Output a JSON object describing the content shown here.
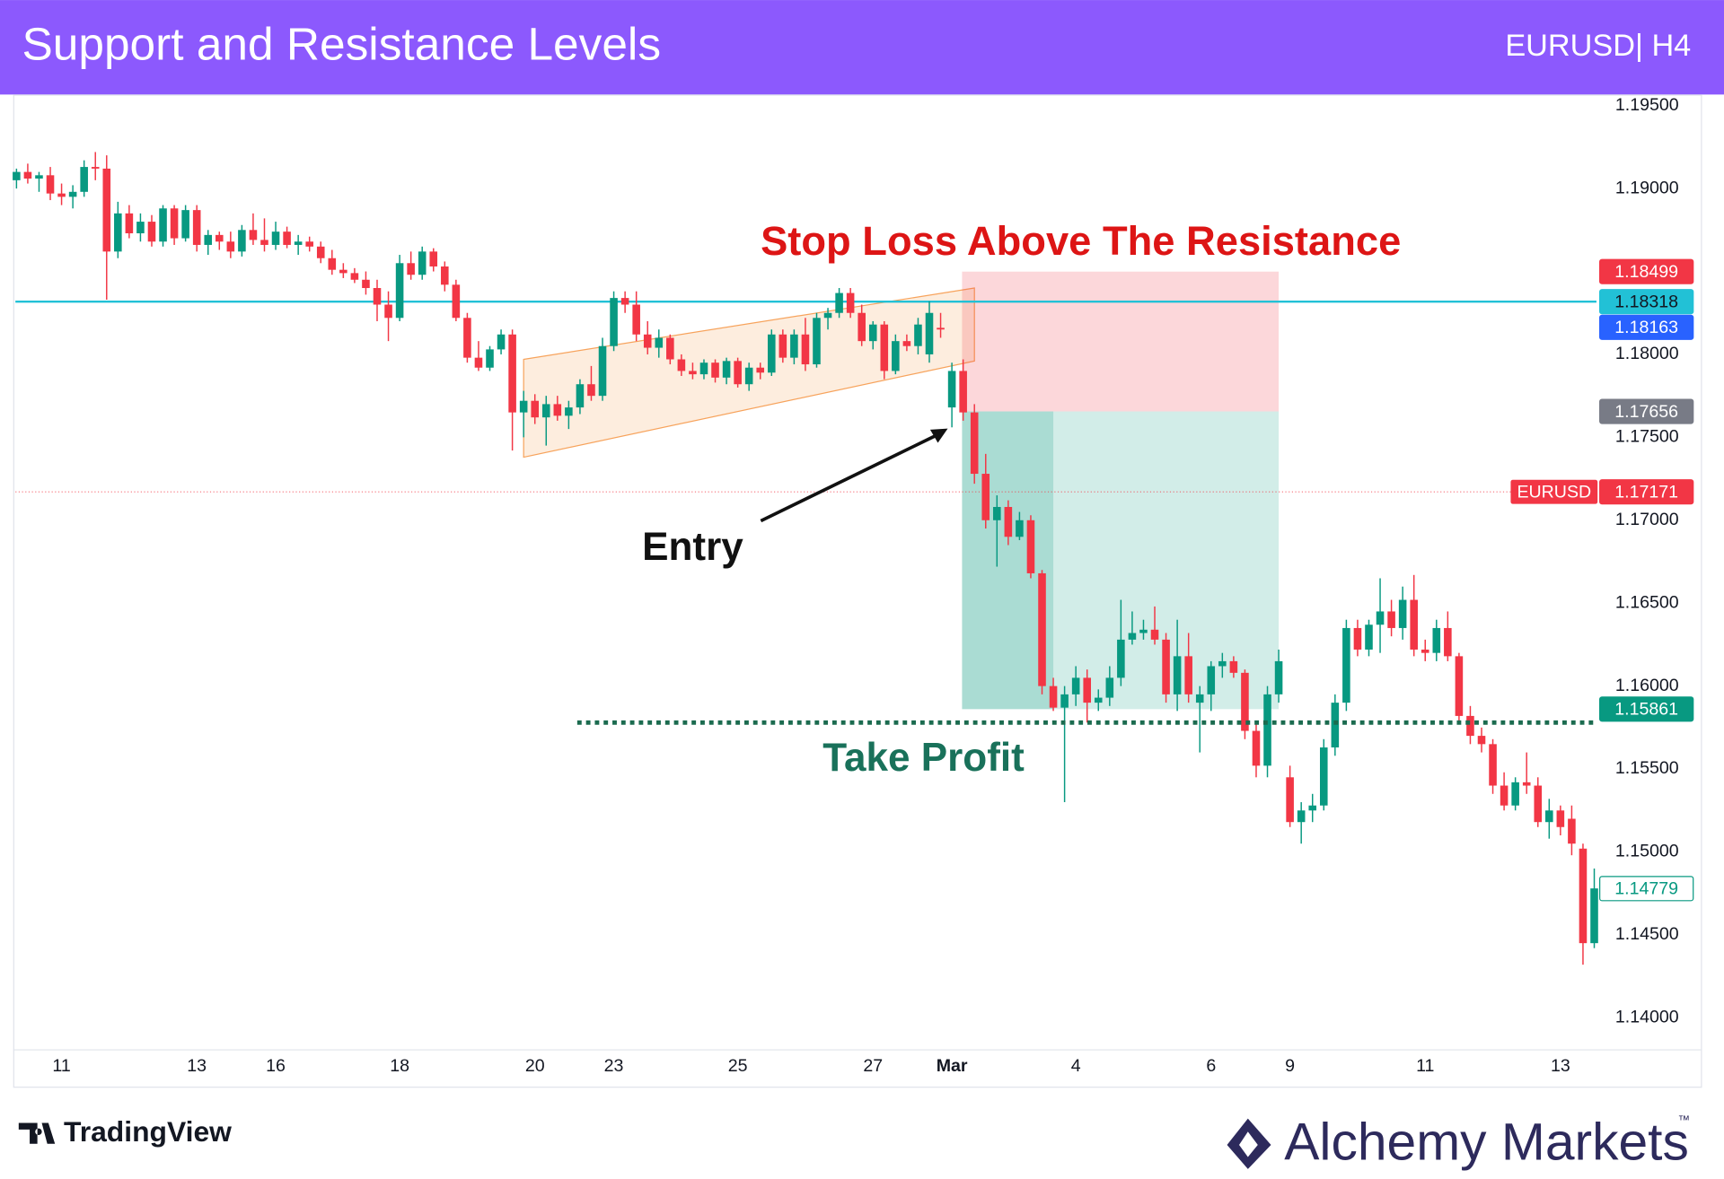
{
  "header": {
    "title": "Support and Resistance Levels",
    "symbol": "EURUSD| H4"
  },
  "chart_data": {
    "type": "candlestick",
    "categories": [
      null,
      null,
      null,
      null,
      "11",
      null,
      null,
      null,
      null,
      null,
      null,
      null,
      null,
      null,
      null,
      null,
      "13",
      null,
      null,
      null,
      null,
      null,
      null,
      "16",
      null,
      null,
      null,
      null,
      null,
      null,
      null,
      null,
      null,
      null,
      "18",
      null,
      null,
      null,
      null,
      null,
      null,
      null,
      null,
      null,
      null,
      null,
      "20",
      null,
      null,
      null,
      null,
      null,
      null,
      "23",
      null,
      null,
      null,
      null,
      null,
      null,
      null,
      null,
      null,
      null,
      "25",
      null,
      null,
      null,
      null,
      null,
      null,
      null,
      null,
      null,
      null,
      null,
      "27",
      null,
      null,
      null,
      null,
      null,
      null,
      "Mar",
      null,
      null,
      null,
      null,
      null,
      null,
      null,
      null,
      null,
      null,
      "4",
      null,
      null,
      null,
      null,
      null,
      null,
      null,
      null,
      null,
      null,
      null,
      "6",
      null,
      null,
      null,
      null,
      null,
      null,
      "9",
      null,
      null,
      null,
      null,
      null,
      null,
      null,
      null,
      null,
      null,
      null,
      "11",
      null,
      null,
      null,
      null,
      null,
      null,
      null,
      null,
      null,
      null,
      null,
      "13",
      null,
      null,
      null
    ],
    "ohlc": [
      [
        1.1905,
        1.1912,
        1.19,
        1.191
      ],
      [
        1.191,
        1.1915,
        1.1903,
        1.1906
      ],
      [
        1.1906,
        1.191,
        1.1898,
        1.1908
      ],
      [
        1.1908,
        1.1913,
        1.1893,
        1.1897
      ],
      [
        1.1897,
        1.1903,
        1.189,
        1.1895
      ],
      [
        1.1895,
        1.1902,
        1.1888,
        1.1898
      ],
      [
        1.1898,
        1.1917,
        1.1895,
        1.1913
      ],
      [
        1.1913,
        1.1922,
        1.1905,
        1.1912
      ],
      [
        1.1912,
        1.192,
        1.1833,
        1.1862
      ],
      [
        1.1862,
        1.1892,
        1.1858,
        1.1885
      ],
      [
        1.1885,
        1.189,
        1.187,
        1.1873
      ],
      [
        1.1873,
        1.1885,
        1.1868,
        1.188
      ],
      [
        1.188,
        1.1884,
        1.1865,
        1.1868
      ],
      [
        1.1868,
        1.189,
        1.1865,
        1.1888
      ],
      [
        1.1888,
        1.189,
        1.1866,
        1.187
      ],
      [
        1.187,
        1.189,
        1.1868,
        1.1887
      ],
      [
        1.1887,
        1.189,
        1.1862,
        1.1866
      ],
      [
        1.1866,
        1.1875,
        1.186,
        1.1872
      ],
      [
        1.1872,
        1.1874,
        1.1863,
        1.1868
      ],
      [
        1.1868,
        1.1874,
        1.1858,
        1.1862
      ],
      [
        1.1862,
        1.1878,
        1.1859,
        1.1875
      ],
      [
        1.1875,
        1.1885,
        1.1866,
        1.1869
      ],
      [
        1.1869,
        1.1882,
        1.1862,
        1.1866
      ],
      [
        1.1866,
        1.188,
        1.1863,
        1.1874
      ],
      [
        1.1874,
        1.1877,
        1.1864,
        1.1866
      ],
      [
        1.1866,
        1.1872,
        1.186,
        1.1868
      ],
      [
        1.1868,
        1.1871,
        1.1862,
        1.1865
      ],
      [
        1.1865,
        1.1868,
        1.1855,
        1.1858
      ],
      [
        1.1858,
        1.1863,
        1.1848,
        1.1851
      ],
      [
        1.1851,
        1.1855,
        1.1846,
        1.1849
      ],
      [
        1.1849,
        1.1852,
        1.1843,
        1.1845
      ],
      [
        1.1845,
        1.185,
        1.1836,
        1.184
      ],
      [
        1.184,
        1.1845,
        1.182,
        1.183
      ],
      [
        1.183,
        1.1838,
        1.1808,
        1.1822
      ],
      [
        1.1822,
        1.186,
        1.182,
        1.1855
      ],
      [
        1.1855,
        1.1862,
        1.1845,
        1.1848
      ],
      [
        1.1848,
        1.1865,
        1.1845,
        1.1862
      ],
      [
        1.1862,
        1.1864,
        1.185,
        1.1853
      ],
      [
        1.1853,
        1.1856,
        1.1838,
        1.1842
      ],
      [
        1.1842,
        1.1845,
        1.182,
        1.1822
      ],
      [
        1.1822,
        1.1825,
        1.1795,
        1.1798
      ],
      [
        1.1798,
        1.1808,
        1.179,
        1.1792
      ],
      [
        1.1792,
        1.1805,
        1.179,
        1.1803
      ],
      [
        1.1803,
        1.1815,
        1.18,
        1.1812
      ],
      [
        1.1812,
        1.1815,
        1.1742,
        1.1765
      ],
      [
        1.1765,
        1.1778,
        1.175,
        1.1772
      ],
      [
        1.1772,
        1.1776,
        1.1758,
        1.1762
      ],
      [
        1.1762,
        1.1775,
        1.1745,
        1.177
      ],
      [
        1.177,
        1.1775,
        1.176,
        1.1763
      ],
      [
        1.1763,
        1.1772,
        1.1755,
        1.1768
      ],
      [
        1.1768,
        1.1785,
        1.1764,
        1.1782
      ],
      [
        1.1782,
        1.1793,
        1.1772,
        1.1775
      ],
      [
        1.1775,
        1.181,
        1.1772,
        1.1805
      ],
      [
        1.1805,
        1.1838,
        1.1802,
        1.1834
      ],
      [
        1.1834,
        1.1838,
        1.1825,
        1.183
      ],
      [
        1.183,
        1.1838,
        1.1808,
        1.1812
      ],
      [
        1.1812,
        1.182,
        1.18,
        1.1804
      ],
      [
        1.1804,
        1.1815,
        1.1798,
        1.181
      ],
      [
        1.181,
        1.1812,
        1.1794,
        1.1797
      ],
      [
        1.1797,
        1.18,
        1.1787,
        1.179
      ],
      [
        1.179,
        1.1795,
        1.1785,
        1.1788
      ],
      [
        1.1788,
        1.1797,
        1.1785,
        1.1795
      ],
      [
        1.1795,
        1.1797,
        1.1783,
        1.1786
      ],
      [
        1.1786,
        1.1798,
        1.1782,
        1.1796
      ],
      [
        1.1796,
        1.1798,
        1.178,
        1.1782
      ],
      [
        1.1782,
        1.1795,
        1.1778,
        1.1792
      ],
      [
        1.1792,
        1.1795,
        1.1785,
        1.1789
      ],
      [
        1.1789,
        1.1815,
        1.1787,
        1.1812
      ],
      [
        1.1812,
        1.1815,
        1.1795,
        1.1798
      ],
      [
        1.1798,
        1.1815,
        1.1794,
        1.1812
      ],
      [
        1.1812,
        1.1822,
        1.179,
        1.1794
      ],
      [
        1.1794,
        1.1825,
        1.1792,
        1.1822
      ],
      [
        1.1822,
        1.1828,
        1.1815,
        1.1825
      ],
      [
        1.1825,
        1.184,
        1.1822,
        1.1837
      ],
      [
        1.1837,
        1.184,
        1.1822,
        1.1825
      ],
      [
        1.1825,
        1.183,
        1.1805,
        1.1808
      ],
      [
        1.1808,
        1.182,
        1.1803,
        1.1818
      ],
      [
        1.1818,
        1.182,
        1.1785,
        1.179
      ],
      [
        1.179,
        1.1812,
        1.1788,
        1.1808
      ],
      [
        1.1808,
        1.1812,
        1.1802,
        1.1805
      ],
      [
        1.1805,
        1.1822,
        1.18,
        1.1818
      ],
      [
        1.18,
        1.1832,
        1.1795,
        1.1825
      ],
      [
        1.1816,
        1.1825,
        1.181,
        1.1815
      ],
      [
        1.1768,
        1.1795,
        1.1756,
        1.179
      ],
      [
        1.179,
        1.1797,
        1.176,
        1.1765
      ],
      [
        1.1765,
        1.177,
        1.1722,
        1.1728
      ],
      [
        1.1728,
        1.174,
        1.1695,
        1.17
      ],
      [
        1.17,
        1.1715,
        1.1672,
        1.1708
      ],
      [
        1.1708,
        1.1712,
        1.1685,
        1.169
      ],
      [
        1.169,
        1.1705,
        1.1688,
        1.17
      ],
      [
        1.17,
        1.1703,
        1.1665,
        1.1668
      ],
      [
        1.1668,
        1.167,
        1.1595,
        1.16
      ],
      [
        1.16,
        1.1605,
        1.1585,
        1.1587
      ],
      [
        1.1587,
        1.16,
        1.153,
        1.1595
      ],
      [
        1.1595,
        1.1612,
        1.1588,
        1.1605
      ],
      [
        1.1605,
        1.161,
        1.1578,
        1.159
      ],
      [
        1.159,
        1.1598,
        1.1585,
        1.1593
      ],
      [
        1.1593,
        1.1612,
        1.1588,
        1.1605
      ],
      [
        1.1605,
        1.1652,
        1.16,
        1.1628
      ],
      [
        1.1628,
        1.1645,
        1.1625,
        1.1632
      ],
      [
        1.1632,
        1.164,
        1.1628,
        1.1634
      ],
      [
        1.1634,
        1.1648,
        1.1625,
        1.1628
      ],
      [
        1.1628,
        1.1632,
        1.159,
        1.1595
      ],
      [
        1.1595,
        1.164,
        1.1585,
        1.1618
      ],
      [
        1.1618,
        1.1632,
        1.159,
        1.1595
      ],
      [
        1.159,
        1.16,
        1.156,
        1.1595
      ],
      [
        1.1595,
        1.1615,
        1.1585,
        1.1612
      ],
      [
        1.1612,
        1.162,
        1.1605,
        1.1615
      ],
      [
        1.1615,
        1.1618,
        1.1605,
        1.1608
      ],
      [
        1.1608,
        1.161,
        1.1568,
        1.1573
      ],
      [
        1.1573,
        1.1578,
        1.1545,
        1.1552
      ],
      [
        1.1552,
        1.16,
        1.1545,
        1.1595
      ],
      [
        1.1595,
        1.1622,
        1.159,
        1.1615
      ],
      [
        1.1545,
        1.1552,
        1.1515,
        1.1518
      ],
      [
        1.1518,
        1.153,
        1.1505,
        1.1525
      ],
      [
        1.1525,
        1.1535,
        1.1518,
        1.1528
      ],
      [
        1.1528,
        1.1568,
        1.1525,
        1.1563
      ],
      [
        1.1563,
        1.1595,
        1.1558,
        1.159
      ],
      [
        1.159,
        1.164,
        1.1585,
        1.1635
      ],
      [
        1.1635,
        1.164,
        1.1618,
        1.1622
      ],
      [
        1.1622,
        1.164,
        1.1618,
        1.1637
      ],
      [
        1.1637,
        1.1665,
        1.162,
        1.1645
      ],
      [
        1.1645,
        1.1652,
        1.163,
        1.1635
      ],
      [
        1.1635,
        1.166,
        1.1628,
        1.1652
      ],
      [
        1.1652,
        1.1667,
        1.1618,
        1.1622
      ],
      [
        1.1622,
        1.1628,
        1.1615,
        1.162
      ],
      [
        1.162,
        1.164,
        1.1615,
        1.1635
      ],
      [
        1.1635,
        1.1645,
        1.1615,
        1.1618
      ],
      [
        1.1618,
        1.162,
        1.1578,
        1.1582
      ],
      [
        1.1582,
        1.1588,
        1.1565,
        1.157
      ],
      [
        1.157,
        1.1575,
        1.156,
        1.1565
      ],
      [
        1.1565,
        1.1568,
        1.1535,
        1.154
      ],
      [
        1.154,
        1.1548,
        1.1525,
        1.1528
      ],
      [
        1.1528,
        1.1545,
        1.1525,
        1.1542
      ],
      [
        1.1542,
        1.156,
        1.1535,
        1.154
      ],
      [
        1.154,
        1.1545,
        1.1515,
        1.1518
      ],
      [
        1.1518,
        1.1532,
        1.1508,
        1.1525
      ],
      [
        1.1525,
        1.1528,
        1.151,
        1.1515
      ],
      [
        1.152,
        1.1528,
        1.1498,
        1.1505
      ],
      [
        1.1502,
        1.1505,
        1.1432,
        1.1445
      ],
      [
        1.1445,
        1.149,
        1.1442,
        1.1478
      ]
    ],
    "up_color": "#089981",
    "down_color": "#f23645",
    "ylim": [
      1.1381,
      1.1956
    ],
    "yticks": [
      {
        "value": 1.14,
        "label": "1.14000"
      },
      {
        "value": 1.145,
        "label": "1.14500"
      },
      {
        "value": 1.15,
        "label": "1.15000"
      },
      {
        "value": 1.155,
        "label": "1.15500"
      },
      {
        "value": 1.16,
        "label": "1.16000"
      },
      {
        "value": 1.165,
        "label": "1.16500"
      },
      {
        "value": 1.17,
        "label": "1.17000"
      },
      {
        "value": 1.175,
        "label": "1.17500"
      },
      {
        "value": 1.18,
        "label": "1.18000"
      },
      {
        "value": 1.185,
        "label": "1.18500"
      },
      {
        "value": 1.19,
        "label": "1.19000"
      },
      {
        "value": 1.195,
        "label": "1.19500"
      }
    ],
    "channel": {
      "upper": [
        1.1797,
        1.184
      ],
      "lower": [
        1.1738,
        1.1796
      ],
      "color": "#f7a35c"
    },
    "position": {
      "stop": {
        "value": 1.18499,
        "color": "#f23645"
      },
      "entry": {
        "value": 1.17656,
        "color": "#787b86"
      },
      "target": {
        "value": 1.15861,
        "color": "#089981"
      }
    },
    "take_profit_line": 1.1578,
    "price_tags": [
      {
        "value": 1.18318,
        "color": "#22c1d6",
        "line": "solid"
      },
      {
        "value": 1.18163,
        "color": "#2962ff"
      },
      {
        "value": 1.17171,
        "color": "#f23645",
        "line": "dotted",
        "symbol": "EURUSD"
      },
      {
        "value": 1.14779,
        "color": "#089981",
        "outline": true
      }
    ],
    "annotations": {
      "stop_loss": "Stop Loss Above The Resistance",
      "entry": "Entry",
      "take_profit": "Take Profit"
    }
  },
  "footer": {
    "tradingview": "TradingView",
    "brand": "Alchemy Markets",
    "trademark": "™"
  }
}
